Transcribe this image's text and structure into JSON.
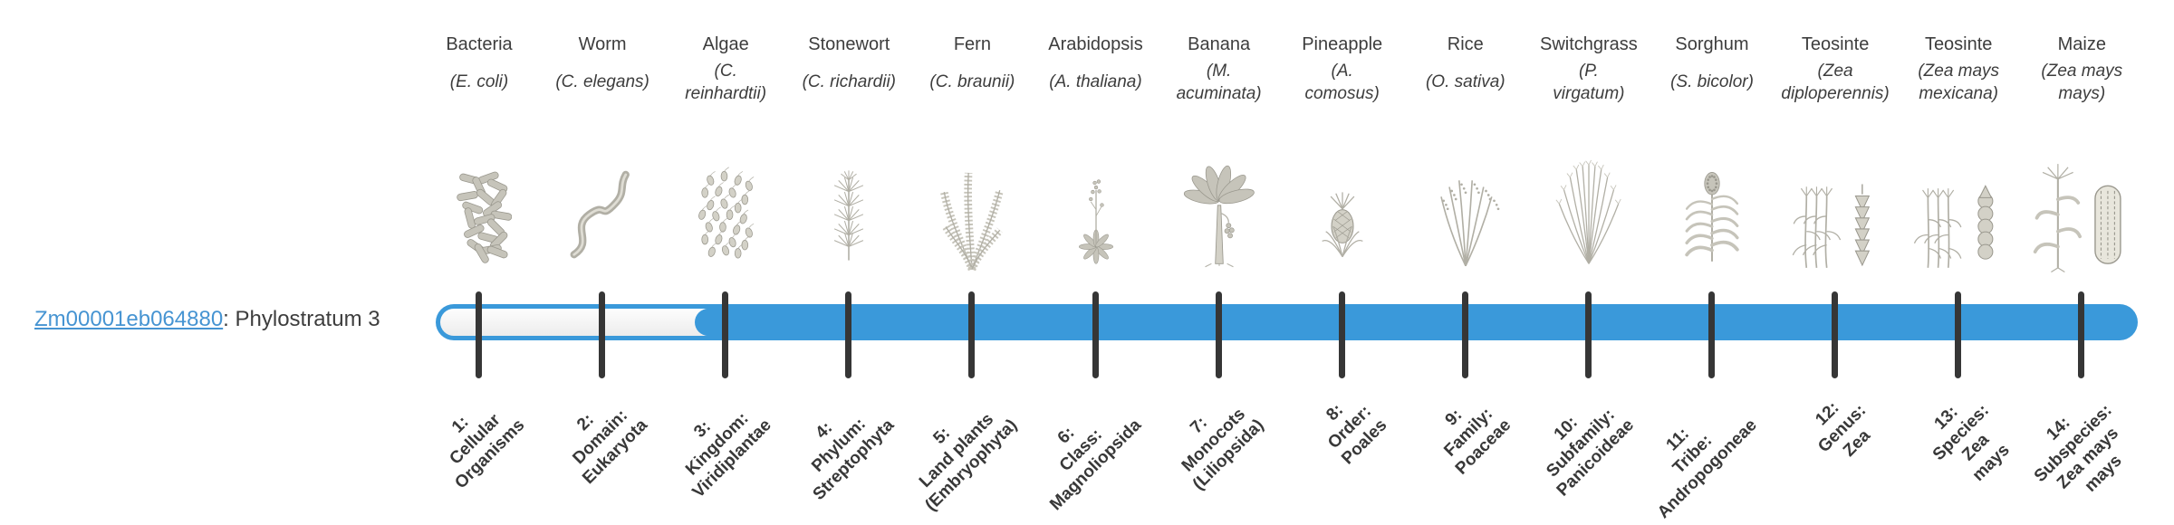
{
  "gene": {
    "id": "Zm00001eb064880",
    "suffix": ": Phylostratum 3",
    "phylostratum": 3
  },
  "timeline": {
    "total_strata": 14,
    "filled_from_stratum": 3,
    "bar_color": "#3a99da",
    "track_color": "#f4f4f4",
    "tick_color": "#363636"
  },
  "chart_data": {
    "type": "table",
    "title": "Zm00001eb064880: Phylostratum 3",
    "categories": [
      "1",
      "2",
      "3",
      "4",
      "5",
      "6",
      "7",
      "8",
      "9",
      "10",
      "11",
      "12",
      "13",
      "14"
    ],
    "filled": [
      false,
      false,
      true,
      true,
      true,
      true,
      true,
      true,
      true,
      true,
      true,
      true,
      true,
      true
    ],
    "legend_position": "left",
    "notes": "Phylostratigraphy timeline; strata 1-2 unfilled (white), strata 3-14 filled blue"
  },
  "strata": [
    {
      "index": 1,
      "organism": "Bacteria",
      "species": "(E. coli)",
      "stratum_label": "1:\nCellular\nOrganisms",
      "icon": "bacteria-illustration"
    },
    {
      "index": 2,
      "organism": "Worm",
      "species": "(C. elegans)",
      "stratum_label": "2:\nDomain:\nEukaryota",
      "icon": "worm-illustration"
    },
    {
      "index": 3,
      "organism": "Algae",
      "species": "(C.\nreinhardtii)",
      "stratum_label": "3:\nKingdom:\nViridiplantae",
      "icon": "algae-illustration"
    },
    {
      "index": 4,
      "organism": "Stonewort",
      "species": "(C. richardii)",
      "stratum_label": "4:\nPhylum:\nStreptophyta",
      "icon": "stonewort-illustration"
    },
    {
      "index": 5,
      "organism": "Fern",
      "species": "(C. braunii)",
      "stratum_label": "5:\nLand plants\n(Embryophyta)",
      "icon": "fern-illustration"
    },
    {
      "index": 6,
      "organism": "Arabidopsis",
      "species": "(A. thaliana)",
      "stratum_label": "6:\nClass:\nMagnoliopsida",
      "icon": "arabidopsis-illustration"
    },
    {
      "index": 7,
      "organism": "Banana",
      "species": "(M.\nacuminata)",
      "stratum_label": "7:\nMonocots\n(Liliopsida)",
      "icon": "banana-illustration"
    },
    {
      "index": 8,
      "organism": "Pineapple",
      "species": "(A.\ncomosus)",
      "stratum_label": "8:\nOrder:\nPoales",
      "icon": "pineapple-illustration"
    },
    {
      "index": 9,
      "organism": "Rice",
      "species": "(O. sativa)",
      "stratum_label": "9:\nFamily:\nPoaceae",
      "icon": "rice-illustration"
    },
    {
      "index": 10,
      "organism": "Switchgrass",
      "species": "(P.\nvirgatum)",
      "stratum_label": "10:\nSubfamily:\nPanicoideae",
      "icon": "switchgrass-illustration"
    },
    {
      "index": 11,
      "organism": "Sorghum",
      "species": "(S. bicolor)",
      "stratum_label": "11:\nTribe:\nAndropogoneae",
      "icon": "sorghum-illustration"
    },
    {
      "index": 12,
      "organism": "Teosinte",
      "species": "(Zea\ndiploperennis)",
      "stratum_label": "12:\nGenus:\nZea",
      "icon": "teosinte-diploperennis-illustration"
    },
    {
      "index": 13,
      "organism": "Teosinte",
      "species": "(Zea mays\nmexicana)",
      "stratum_label": "13:\nSpecies:\nZea\nmays",
      "icon": "teosinte-mexicana-illustration"
    },
    {
      "index": 14,
      "organism": "Maize",
      "species": "(Zea mays\nmays)",
      "stratum_label": "14:\nSubspecies:\nZea mays\nmays",
      "icon": "maize-illustration"
    }
  ]
}
